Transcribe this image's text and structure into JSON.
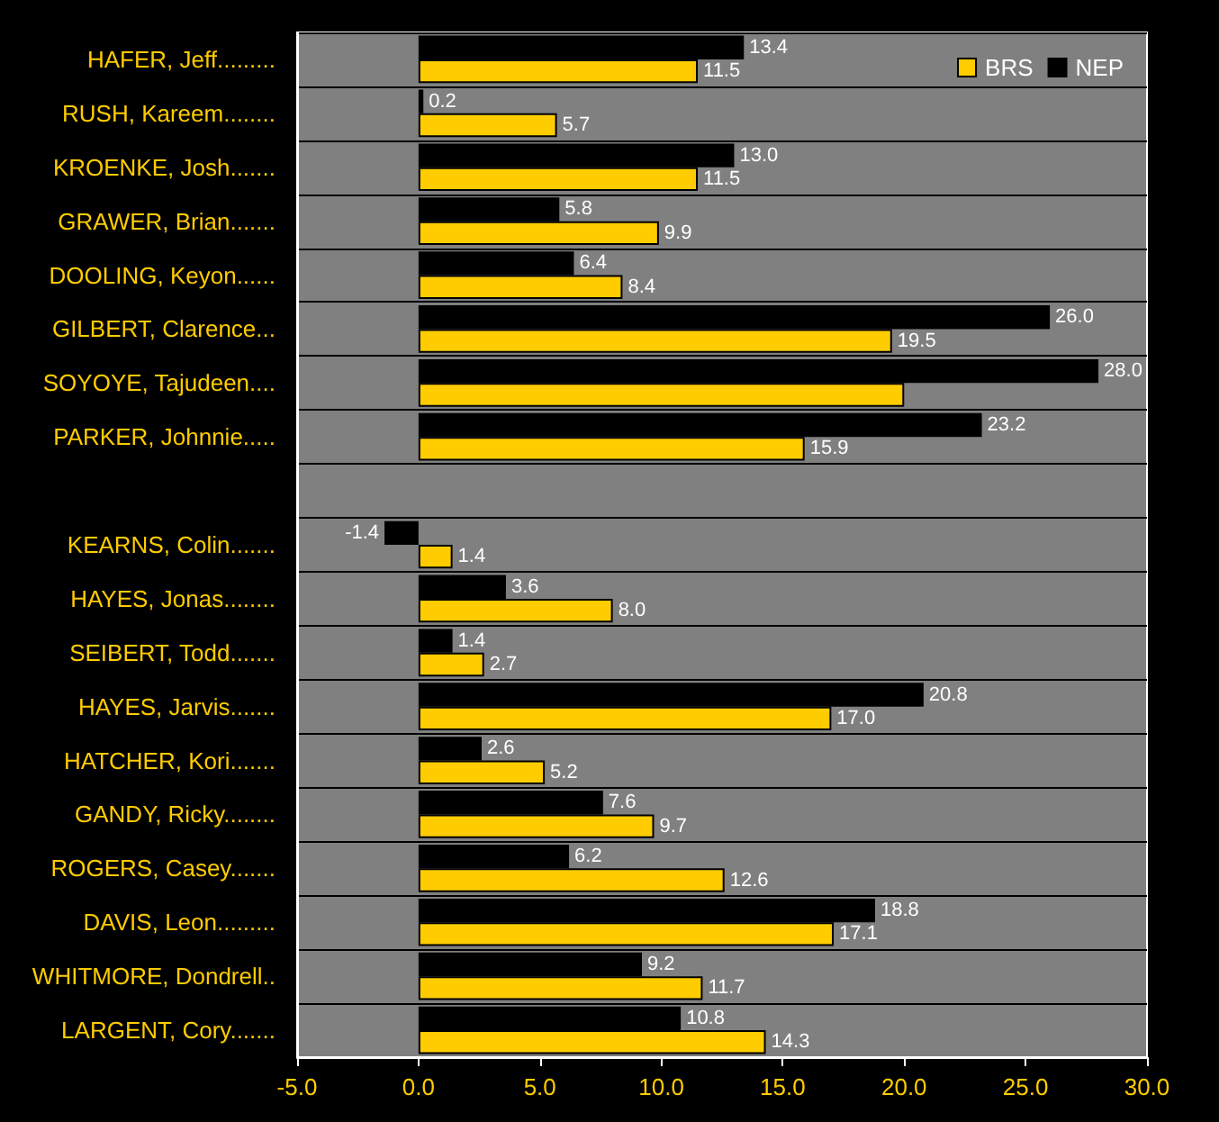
{
  "chart_data": {
    "type": "bar",
    "orientation": "horizontal",
    "categories": [
      "HAFER, Jeff.........",
      "RUSH, Kareem........",
      "KROENKE, Josh.......",
      "GRAWER, Brian.......",
      "DOOLING, Keyon......",
      "GILBERT, Clarence...",
      "SOYOYE, Tajudeen....",
      "PARKER, Johnnie.....",
      null,
      "KEARNS, Colin.......",
      "HAYES, Jonas........",
      "SEIBERT, Todd.......",
      "HAYES, Jarvis.......",
      "HATCHER, Kori.......",
      "GANDY, Ricky........",
      "ROGERS, Casey.......",
      "DAVIS, Leon.........",
      "WHITMORE, Dondrell..",
      "LARGENT, Cory......."
    ],
    "series": [
      {
        "name": "BRS",
        "color": "#ffcc00",
        "values": [
          11.5,
          5.7,
          11.5,
          9.9,
          8.4,
          19.5,
          20.0,
          15.9,
          null,
          1.4,
          8.0,
          2.7,
          17.0,
          5.2,
          9.7,
          12.6,
          17.1,
          11.7,
          14.3
        ],
        "value_labels": [
          "11.5",
          "5.7",
          "11.5",
          "9.9",
          "8.4",
          "19.5",
          null,
          "15.9",
          null,
          "1.4",
          "8.0",
          "2.7",
          "17.0",
          "5.2",
          "9.7",
          "12.6",
          "17.1",
          "11.7",
          "14.3"
        ]
      },
      {
        "name": "NEP",
        "color": "#000000",
        "values": [
          13.4,
          0.2,
          13.0,
          5.8,
          6.4,
          26.0,
          28.0,
          23.2,
          null,
          -1.4,
          3.6,
          1.4,
          20.8,
          2.6,
          7.6,
          6.2,
          18.8,
          9.2,
          10.8
        ],
        "value_labels": [
          "13.4",
          "0.2",
          "13.0",
          "5.8",
          "6.4",
          "26.0",
          "28.0",
          "23.2",
          null,
          "-1.4",
          "3.6",
          "1.4",
          "20.8",
          "2.6",
          "7.6",
          "6.2",
          "18.8",
          "9.2",
          "10.8"
        ]
      }
    ],
    "xlim": [
      -5,
      30
    ],
    "xticks": [
      {
        "value": -5,
        "label": "-5.0"
      },
      {
        "value": 0,
        "label": "0.0"
      },
      {
        "value": 5,
        "label": "5.0"
      },
      {
        "value": 10,
        "label": "10.0"
      },
      {
        "value": 15,
        "label": "15.0"
      },
      {
        "value": 20,
        "label": "20.0"
      },
      {
        "value": 25,
        "label": "25.0"
      },
      {
        "value": 30,
        "label": "30.0"
      }
    ],
    "grid": "y",
    "legend": "top right"
  }
}
